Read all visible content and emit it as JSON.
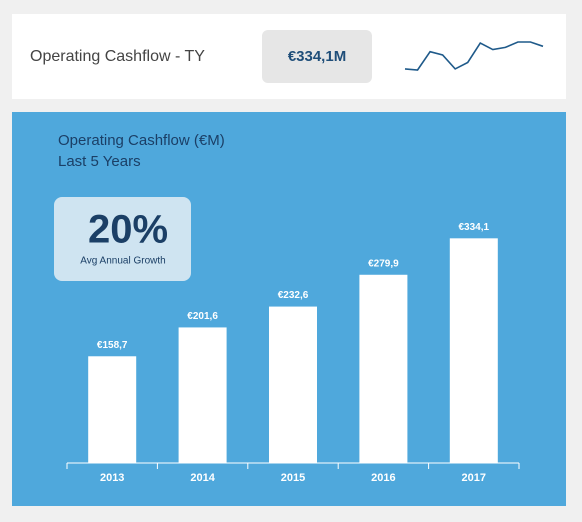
{
  "header": {
    "title": "Operating Cashflow - TY",
    "value": "€334,1M",
    "sparkline": {
      "values": [
        2,
        1,
        18,
        15,
        2,
        8,
        26,
        20,
        22,
        27,
        27,
        23
      ],
      "color": "#1f5a8a"
    }
  },
  "kpi": {
    "value": "20%",
    "label": "Avg Annual Growth"
  },
  "chart_data": {
    "type": "bar",
    "title": "Operating Cashflow (€M)",
    "subtitle": "Last 5 Years",
    "categories": [
      "2013",
      "2014",
      "2015",
      "2016",
      "2017"
    ],
    "values": [
      158.7,
      201.6,
      232.6,
      279.9,
      334.1
    ],
    "value_labels": [
      "€158,7",
      "€201,6",
      "€232,6",
      "€279,9",
      "€334,1"
    ],
    "color": "#ffffff",
    "ylim": [
      0,
      400
    ]
  }
}
